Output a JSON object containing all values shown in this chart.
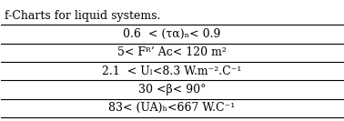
{
  "title_line": "f-Charts for liquid systems.",
  "rows": [
    "0.6  < (τα)ₙ< 0.9",
    "5< Fᴿ’ Aᴄ< 120 m²",
    "2.1  < Uₗ<8.3 W.m⁻².C⁻¹",
    "30 <β< 90°",
    "83< (UA)ₕ<667 W.C⁻¹"
  ],
  "background_color": "#ffffff",
  "text_color": "#000000",
  "font_size": 9,
  "title_font_size": 9
}
